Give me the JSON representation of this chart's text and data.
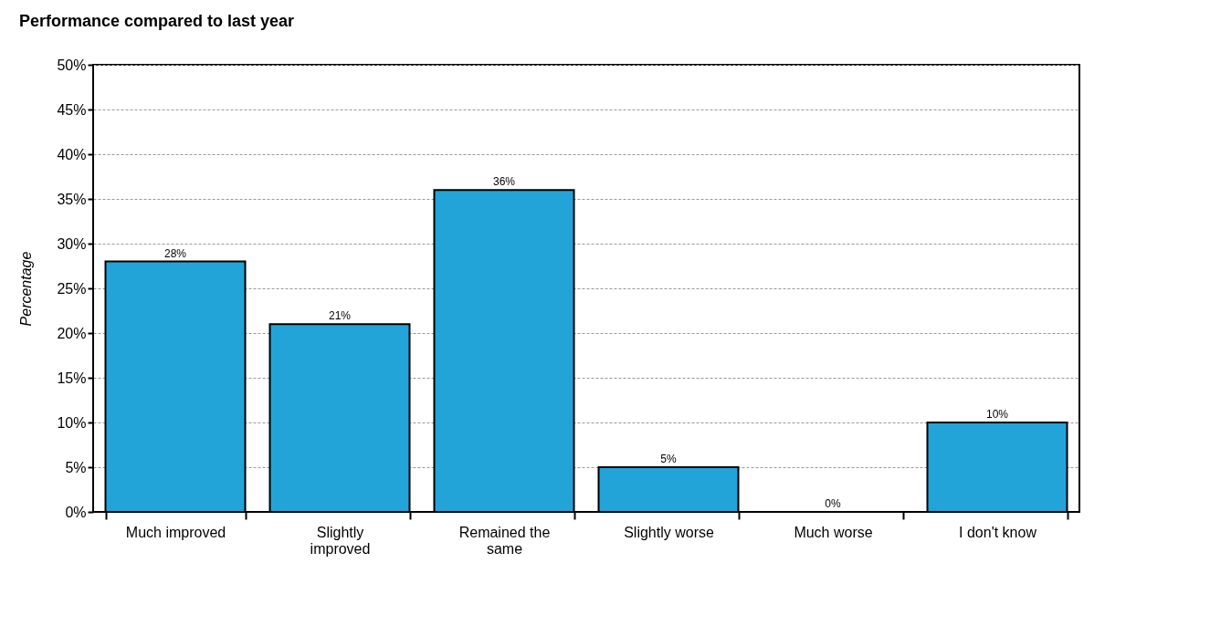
{
  "chart_data": {
    "type": "bar",
    "title": "Performance compared to last year",
    "ylabel": "Percentage",
    "categories": [
      "Much improved",
      "Slightly improved",
      "Remained the same",
      "Slightly worse",
      "Much worse",
      "I don't know"
    ],
    "values": [
      28,
      21,
      36,
      5,
      0,
      10
    ],
    "value_labels": [
      "28%",
      "21%",
      "36%",
      "5%",
      "0%",
      "10%"
    ],
    "color": "#22a4d9",
    "ylim": [
      0,
      50
    ],
    "yticks": [
      {
        "value": 0,
        "label": "0%"
      },
      {
        "value": 5,
        "label": "5%"
      },
      {
        "value": 10,
        "label": "10%"
      },
      {
        "value": 15,
        "label": "15%"
      },
      {
        "value": 20,
        "label": "20%"
      },
      {
        "value": 25,
        "label": "25%"
      },
      {
        "value": 30,
        "label": "30%"
      },
      {
        "value": 35,
        "label": "35%"
      },
      {
        "value": 40,
        "label": "40%"
      },
      {
        "value": 45,
        "label": "45%"
      },
      {
        "value": 50,
        "label": "50%"
      }
    ],
    "grid": "y"
  }
}
